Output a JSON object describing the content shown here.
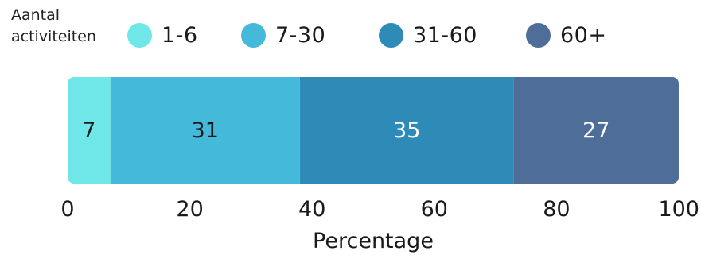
{
  "chart_data": {
    "type": "bar",
    "orientation": "horizontal",
    "stacked": true,
    "legend": {
      "title_lines": [
        "Aantal",
        "activiteiten"
      ],
      "position": "top"
    },
    "series": [
      {
        "name": "1-6",
        "values": [
          7
        ],
        "color": "#6fe6e8",
        "label_color": "#1a1a1a"
      },
      {
        "name": "7-30",
        "values": [
          31
        ],
        "color": "#45b9d9",
        "label_color": "#1a1a1a"
      },
      {
        "name": "31-60",
        "values": [
          35
        ],
        "color": "#2e8bb8",
        "label_color": "#ffffff"
      },
      {
        "name": "60+",
        "values": [
          27
        ],
        "color": "#4f6d99",
        "label_color": "#ffffff"
      }
    ],
    "xlabel": "Percentage",
    "xlim": [
      0,
      100
    ],
    "xticks": [
      0,
      20,
      40,
      60,
      80,
      100
    ],
    "grid": false
  }
}
